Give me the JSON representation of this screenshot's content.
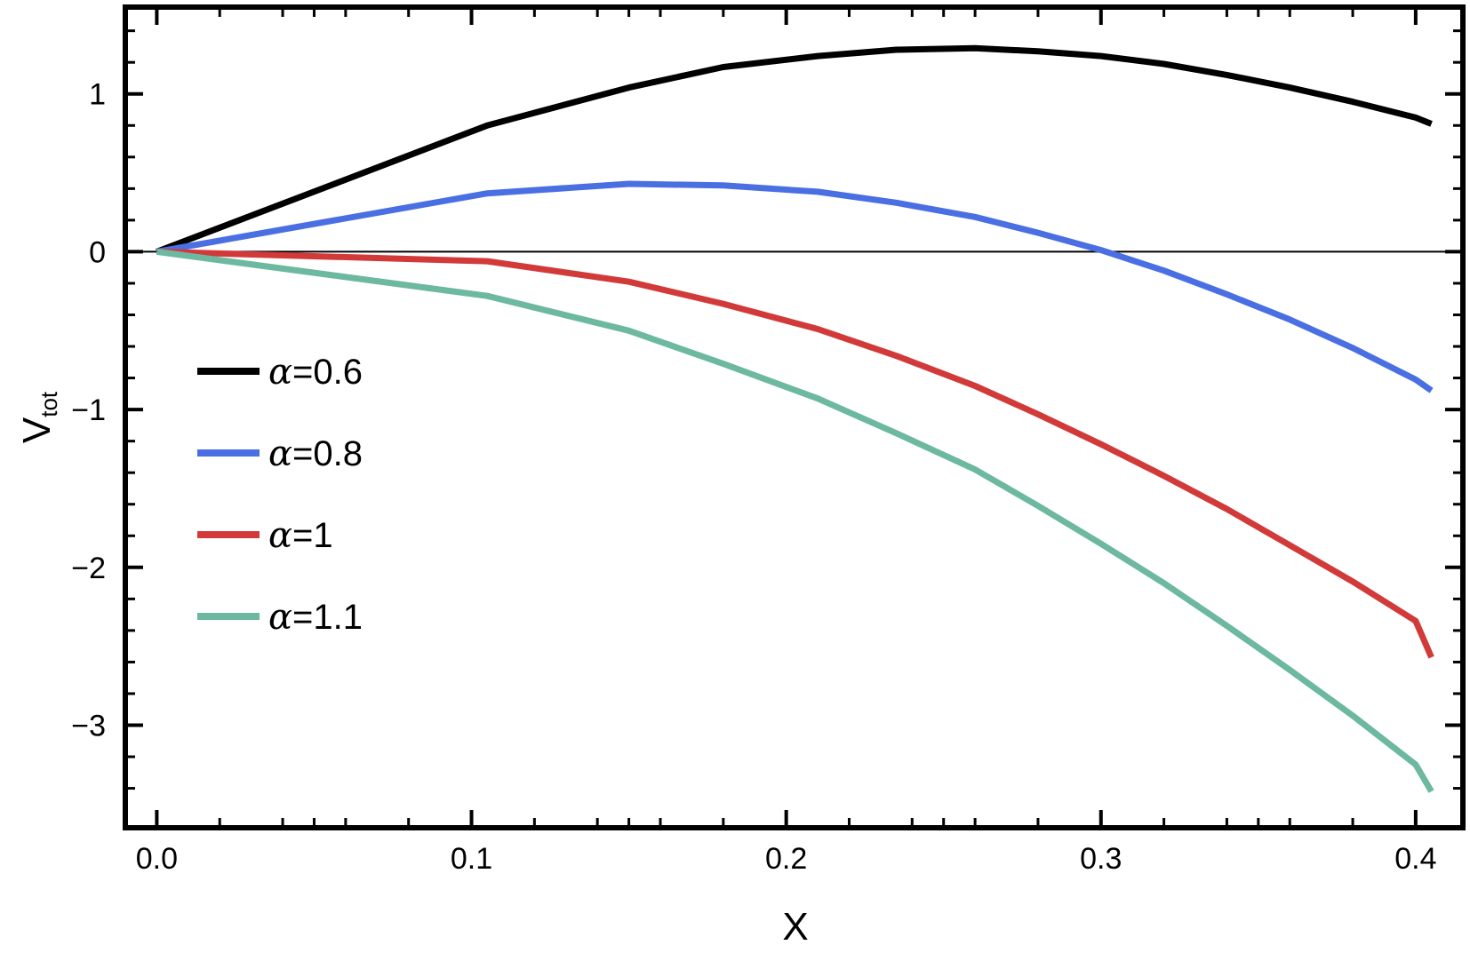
{
  "chart_data": {
    "type": "line",
    "xlabel": "X",
    "ylabel": {
      "main": "V",
      "sub": "tot"
    },
    "xlim": [
      -0.01,
      0.415
    ],
    "ylim": [
      -3.65,
      1.55
    ],
    "x_ticks": [
      0.0,
      0.1,
      0.2,
      0.3,
      0.4
    ],
    "x_tick_labels": [
      "0.0",
      "0.1",
      "0.2",
      "0.3",
      "0.4"
    ],
    "y_ticks": [
      -3,
      -2,
      -1,
      0,
      1
    ],
    "y_tick_labels": [
      "−3",
      "−2",
      "−1",
      "0",
      "1"
    ],
    "zero_line": true,
    "grid": false,
    "legend_position": "left-middle",
    "series": [
      {
        "name": "α=0.6",
        "name_parts": {
          "symbol": "α",
          "value": "=0.6"
        },
        "color": "#000000",
        "x": [
          0.0,
          0.105,
          0.15,
          0.18,
          0.21,
          0.235,
          0.26,
          0.28,
          0.3,
          0.32,
          0.34,
          0.36,
          0.38,
          0.4,
          0.405
        ],
        "y": [
          0.0,
          0.8,
          1.04,
          1.17,
          1.24,
          1.28,
          1.29,
          1.27,
          1.24,
          1.19,
          1.12,
          1.04,
          0.95,
          0.85,
          0.81
        ]
      },
      {
        "name": "α=0.8",
        "name_parts": {
          "symbol": "α",
          "value": "=0.8"
        },
        "color": "#4a6fe3",
        "x": [
          0.0,
          0.105,
          0.15,
          0.18,
          0.21,
          0.235,
          0.26,
          0.28,
          0.3,
          0.32,
          0.34,
          0.36,
          0.38,
          0.4,
          0.405
        ],
        "y": [
          0.0,
          0.37,
          0.43,
          0.42,
          0.38,
          0.31,
          0.22,
          0.12,
          0.01,
          -0.12,
          -0.27,
          -0.43,
          -0.61,
          -0.81,
          -0.88
        ]
      },
      {
        "name": "α=1",
        "name_parts": {
          "symbol": "α",
          "value": "=1"
        },
        "color": "#d23a3a",
        "x": [
          0.0,
          0.105,
          0.15,
          0.18,
          0.21,
          0.235,
          0.26,
          0.28,
          0.3,
          0.32,
          0.34,
          0.36,
          0.38,
          0.4,
          0.405
        ],
        "y": [
          0.0,
          -0.06,
          -0.19,
          -0.33,
          -0.49,
          -0.66,
          -0.85,
          -1.03,
          -1.22,
          -1.42,
          -1.63,
          -1.86,
          -2.09,
          -2.34,
          -2.57
        ]
      },
      {
        "name": "α=1.1",
        "name_parts": {
          "symbol": "α",
          "value": "=1.1"
        },
        "color": "#6db8a0",
        "x": [
          0.0,
          0.105,
          0.15,
          0.18,
          0.21,
          0.235,
          0.26,
          0.28,
          0.3,
          0.32,
          0.34,
          0.36,
          0.38,
          0.4,
          0.405
        ],
        "y": [
          0.0,
          -0.28,
          -0.5,
          -0.71,
          -0.93,
          -1.15,
          -1.38,
          -1.61,
          -1.85,
          -2.1,
          -2.37,
          -2.65,
          -2.94,
          -3.25,
          -3.42
        ]
      }
    ]
  }
}
